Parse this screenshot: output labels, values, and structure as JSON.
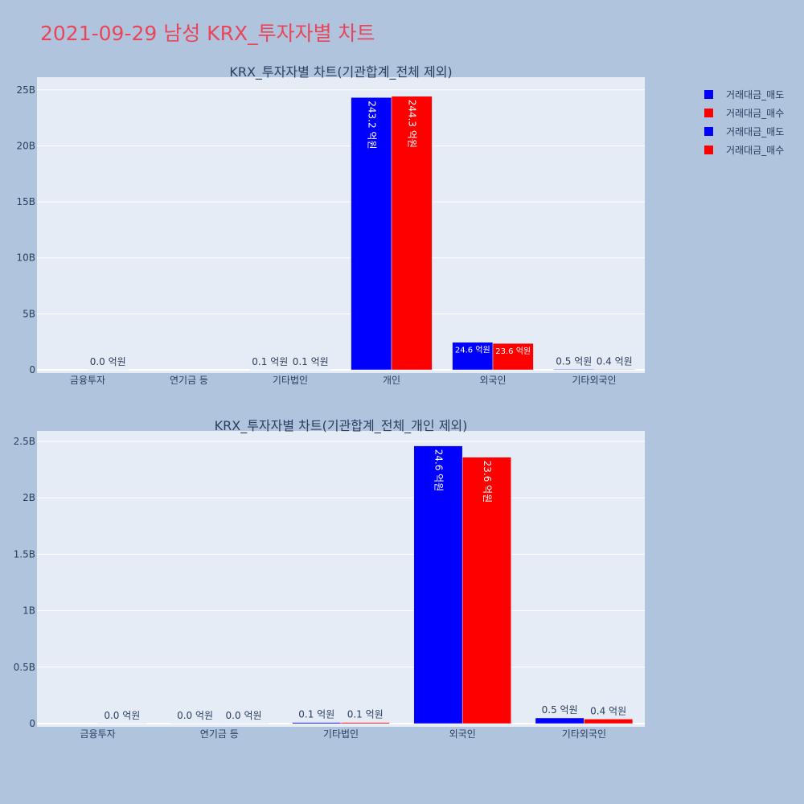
{
  "title": "2021-09-29 남성 KRX_투자자별 차트",
  "colors": {
    "sell": "#0000ff",
    "buy": "#ff0000",
    "plot_bg": "#e5ecf6",
    "page_bg": "#b0c4de"
  },
  "legend": [
    {
      "label": "거래대금_매도",
      "color": "#0000ff"
    },
    {
      "label": "거래대금_매수",
      "color": "#ff0000"
    },
    {
      "label": "거래대금_매도",
      "color": "#0000ff"
    },
    {
      "label": "거래대금_매수",
      "color": "#ff0000"
    }
  ],
  "chart_data": [
    {
      "type": "bar",
      "title": "KRX_투자자별 차트(기관합계_전체 제외)",
      "categories": [
        "금융투자",
        "연기금 등",
        "기타법인",
        "개인",
        "외국인",
        "기타외국인"
      ],
      "series": [
        {
          "name": "거래대금_매도",
          "values": [
            null,
            null,
            10000000,
            24320000000,
            2460000000,
            50000000
          ],
          "labels": [
            "",
            "",
            "0.1 억원",
            "243.2 억원",
            "24.6 억원",
            "0.5 억원"
          ]
        },
        {
          "name": "거래대금_매수",
          "values": [
            0,
            null,
            10000000,
            24430000000,
            2360000000,
            40000000
          ],
          "labels": [
            "0.0 억원",
            "",
            "0.1 억원",
            "244.3 억원",
            "23.6 억원",
            "0.4 억원"
          ]
        }
      ],
      "ylim": [
        0,
        25200000000
      ],
      "yticks": [
        {
          "v": 0,
          "label": "0"
        },
        {
          "v": 5000000000,
          "label": "5B"
        },
        {
          "v": 10000000000,
          "label": "10B"
        },
        {
          "v": 15000000000,
          "label": "15B"
        },
        {
          "v": 20000000000,
          "label": "20B"
        },
        {
          "v": 25000000000,
          "label": "25B"
        }
      ],
      "grid": true
    },
    {
      "type": "bar",
      "title": "KRX_투자자별 차트(기관합계_전체_개인 제외)",
      "categories": [
        "금융투자",
        "연기금 등",
        "기타법인",
        "외국인",
        "기타외국인"
      ],
      "series": [
        {
          "name": "거래대금_매도",
          "values": [
            null,
            0,
            10000000,
            2460000000,
            50000000
          ],
          "labels": [
            "",
            "0.0 억원",
            "0.1 억원",
            "24.6 억원",
            "0.5 억원"
          ]
        },
        {
          "name": "거래대금_매수",
          "values": [
            0,
            0,
            10000000,
            2360000000,
            40000000
          ],
          "labels": [
            "0.0 억원",
            "0.0 억원",
            "0.1 억원",
            "23.6 억원",
            "0.4 억원"
          ]
        }
      ],
      "ylim": [
        0,
        2500000000
      ],
      "yticks": [
        {
          "v": 0,
          "label": "0"
        },
        {
          "v": 500000000,
          "label": "0.5B"
        },
        {
          "v": 1000000000,
          "label": "1B"
        },
        {
          "v": 1500000000,
          "label": "1.5B"
        },
        {
          "v": 2000000000,
          "label": "2B"
        },
        {
          "v": 2500000000,
          "label": "2.5B"
        }
      ],
      "grid": true
    }
  ]
}
